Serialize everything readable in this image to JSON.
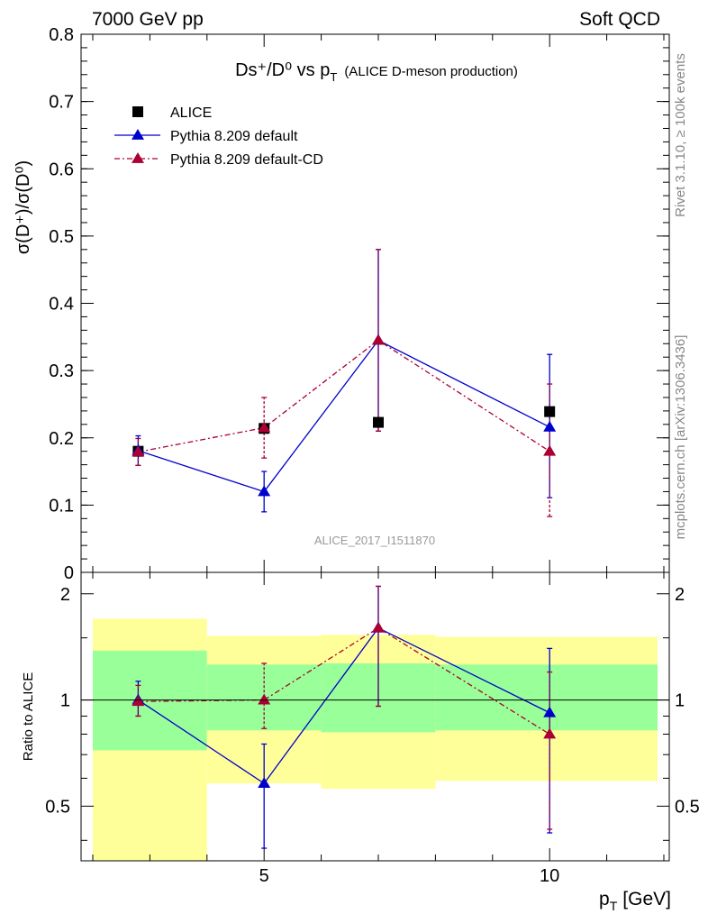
{
  "header": {
    "left": "7000 GeV pp",
    "right": "Soft QCD"
  },
  "side_labels": {
    "rivet": "Rivet 3.1.10, ≥ 100k events",
    "source": "mcplots.cern.ch [arXiv:1306.3436]"
  },
  "plot": {
    "title_main": "Ds⁺/D⁰ vs p",
    "title_sub": "T",
    "title_extra": "(ALICE D-meson production)",
    "ylabel_main": "σ(D⁺)/σ(D⁰)",
    "ratio_ylabel": "Ratio to ALICE",
    "xlabel": "p",
    "xlabel_sub": "T",
    "xlabel_unit": "[GeV]",
    "watermark": "ALICE_2017_I1511870"
  },
  "legend": [
    {
      "label": "ALICE",
      "color": "#000000",
      "marker": "square"
    },
    {
      "label": "Pythia 8.209 default",
      "color": "#0000cc",
      "marker": "triangle"
    },
    {
      "label": "Pythia 8.209 default-CD",
      "color": "#aa0033",
      "marker": "triangle"
    }
  ],
  "chart_data": [
    {
      "type": "scatter",
      "panel": "main",
      "xlim": [
        2,
        12.3
      ],
      "ylim": [
        0,
        0.8
      ],
      "yticks": [
        "0",
        "0.1",
        "0.2",
        "0.3",
        "0.4",
        "0.5",
        "0.6",
        "0.7",
        "0.8"
      ],
      "series": [
        {
          "name": "ALICE",
          "x": [
            3,
            5,
            7,
            10
          ],
          "y": [
            0.18,
            0.214,
            0.223,
            0.239
          ]
        },
        {
          "name": "Pythia 8.209 default",
          "x": [
            3,
            5,
            7,
            10
          ],
          "y": [
            0.181,
            0.12,
            0.345,
            0.216
          ],
          "err_low": [
            0.022,
            0.03,
            0.135,
            0.105
          ],
          "err_high": [
            0.022,
            0.03,
            0.135,
            0.108
          ]
        },
        {
          "name": "Pythia 8.209 default-CD",
          "x": [
            3,
            5,
            7,
            10
          ],
          "y": [
            0.179,
            0.215,
            0.345,
            0.18
          ],
          "err_low": [
            0.02,
            0.045,
            0.135,
            0.097
          ],
          "err_high": [
            0.02,
            0.045,
            0.135,
            0.1
          ]
        }
      ]
    },
    {
      "type": "scatter",
      "panel": "ratio",
      "xlim": [
        2,
        12.3
      ],
      "ylim": [
        0.35,
        2.3
      ],
      "xticks": [
        "5",
        "10"
      ],
      "yticks": [
        "0.5",
        "1",
        "2"
      ],
      "bands": [
        {
          "xlo": 2.0,
          "xhi": 4.0,
          "inner": [
            0.72,
            1.38
          ],
          "outer": [
            0.35,
            1.7
          ]
        },
        {
          "xlo": 4.0,
          "xhi": 6.0,
          "inner": [
            0.82,
            1.26
          ],
          "outer": [
            0.58,
            1.52
          ]
        },
        {
          "xlo": 6.0,
          "xhi": 8.0,
          "inner": [
            0.81,
            1.27
          ],
          "outer": [
            0.56,
            1.53
          ]
        },
        {
          "xlo": 8.0,
          "xhi": 12.0,
          "inner": [
            0.82,
            1.26
          ],
          "outer": [
            0.59,
            1.51
          ]
        }
      ],
      "series": [
        {
          "name": "Pythia 8.209 default",
          "x": [
            3,
            5,
            7,
            10
          ],
          "y": [
            1.0,
            0.58,
            1.6,
            0.92
          ],
          "err_low": [
            0.1,
            0.2,
            0.64,
            0.5
          ],
          "err_high": [
            0.13,
            0.17,
            0.5,
            0.48
          ]
        },
        {
          "name": "Pythia 8.209 default-CD",
          "x": [
            3,
            5,
            7,
            10
          ],
          "y": [
            0.99,
            1.0,
            1.6,
            0.8
          ],
          "err_low": [
            0.09,
            0.17,
            0.64,
            0.37
          ],
          "err_high": [
            0.11,
            0.27,
            0.5,
            0.4
          ]
        }
      ]
    }
  ]
}
